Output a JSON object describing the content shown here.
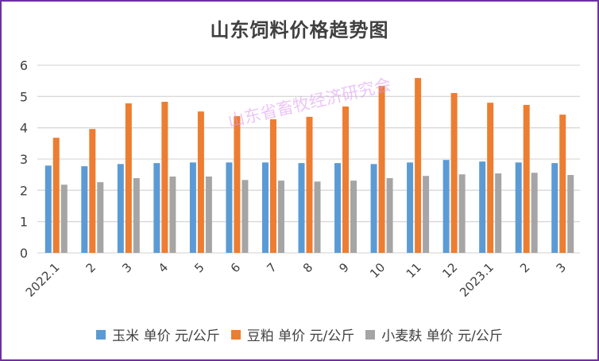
{
  "chart_data": {
    "type": "bar",
    "title": "山东饲料价格趋势图",
    "categories": [
      "2022.1",
      "2",
      "3",
      "4",
      "5",
      "6",
      "7",
      "8",
      "9",
      "10",
      "11",
      "12",
      "2023.1",
      "2",
      "3"
    ],
    "series": [
      {
        "name": "玉米 单价 元/公斤",
        "color": "#5b9bd5",
        "values": [
          2.79,
          2.77,
          2.84,
          2.87,
          2.89,
          2.89,
          2.89,
          2.87,
          2.87,
          2.84,
          2.89,
          2.97,
          2.92,
          2.89,
          2.87
        ]
      },
      {
        "name": "豆粕 单价 元/公斤",
        "color": "#ed7d31",
        "values": [
          3.68,
          3.96,
          4.78,
          4.83,
          4.52,
          4.37,
          4.27,
          4.35,
          4.68,
          5.34,
          5.59,
          5.11,
          4.8,
          4.73,
          4.42
        ]
      },
      {
        "name": "小麦麸 单价 元/公斤",
        "color": "#a5a5a5",
        "values": [
          2.18,
          2.26,
          2.39,
          2.44,
          2.44,
          2.33,
          2.31,
          2.28,
          2.31,
          2.39,
          2.46,
          2.51,
          2.54,
          2.56,
          2.49
        ]
      }
    ],
    "xlabel": "",
    "ylabel": "",
    "ylim": [
      0,
      6
    ],
    "yticks": [
      "0",
      "1",
      "2",
      "3",
      "4",
      "5",
      "6"
    ],
    "grid": true,
    "legend": "bottom"
  },
  "watermark": "山东省畜牧经济研究会"
}
